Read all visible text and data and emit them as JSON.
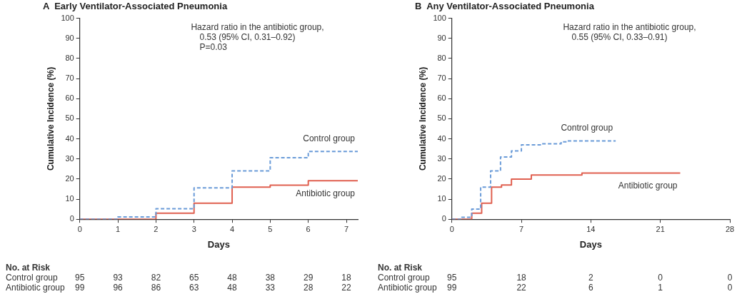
{
  "chart_data": [
    {
      "type": "step",
      "title": "A  Early Ventilator-Associated Pneumonia",
      "xlabel": "Days",
      "ylabel": "Cumulative Incidence (%)",
      "xlim": [
        0,
        7.3
      ],
      "xticks": [
        0,
        1,
        2,
        3,
        4,
        5,
        6,
        7
      ],
      "ylim": [
        0,
        100
      ],
      "yticks": [
        0,
        10,
        20,
        30,
        40,
        50,
        60,
        70,
        80,
        90,
        100
      ],
      "grid": false,
      "legend": false,
      "marker": "none",
      "series": [
        {
          "name": "Control group",
          "color": "#6a9bd8",
          "line_style": "dashed",
          "x": [
            0,
            1,
            2,
            3,
            4,
            5,
            6,
            7.3
          ],
          "values": [
            0,
            1.1,
            5.2,
            15.6,
            24,
            30.6,
            33.7,
            33.7
          ]
        },
        {
          "name": "Antibiotic group",
          "color": "#e06050",
          "line_style": "solid",
          "x": [
            0,
            2,
            3,
            4,
            5,
            6,
            7.3
          ],
          "values": [
            0,
            3,
            8,
            16,
            16.9,
            19.2,
            19.2
          ]
        }
      ],
      "annotations": [
        "Hazard ratio in the antibiotic group,",
        "0.53 (95% CI, 0.31–0.92)",
        "P=0.03",
        "No. at Risk",
        "Control group 95 93 82 65 48 38 29 18",
        "Antibiotic group 99 96 86 63 48 33 28 22"
      ]
    },
    {
      "type": "step",
      "title": "B  Any Ventilator-Associated Pneumonia",
      "xlabel": "Days",
      "ylabel": "Cumulative Incidence (%)",
      "xlim": [
        0,
        28
      ],
      "xticks": [
        0,
        7,
        14,
        21,
        28
      ],
      "ylim": [
        0,
        100
      ],
      "yticks": [
        0,
        10,
        20,
        30,
        40,
        50,
        60,
        70,
        80,
        90,
        100
      ],
      "grid": false,
      "legend": false,
      "marker": "none",
      "series": [
        {
          "name": "Control group",
          "color": "#6a9bd8",
          "line_style": "dashed",
          "x": [
            0,
            1,
            2,
            2.9,
            3.9,
            4.9,
            6,
            7,
            9,
            11,
            11.6,
            16.5
          ],
          "values": [
            0,
            1,
            5,
            16,
            24,
            31,
            34,
            37,
            37.5,
            38.5,
            39,
            39
          ]
        },
        {
          "name": "Antibiotic group",
          "color": "#e06050",
          "line_style": "solid",
          "x": [
            0,
            2,
            3,
            4,
            5,
            6,
            8,
            13.1,
            23
          ],
          "values": [
            0,
            3,
            8,
            16,
            17,
            20,
            22,
            23,
            23
          ]
        }
      ],
      "annotations": [
        "Hazard ratio in the antibiotic group,",
        "0.55 (95% CI, 0.33–0.91)",
        "No. at Risk",
        "Control group 95 18 2 0 0",
        "Antibiotic group 99 22 6 1 0"
      ]
    }
  ]
}
